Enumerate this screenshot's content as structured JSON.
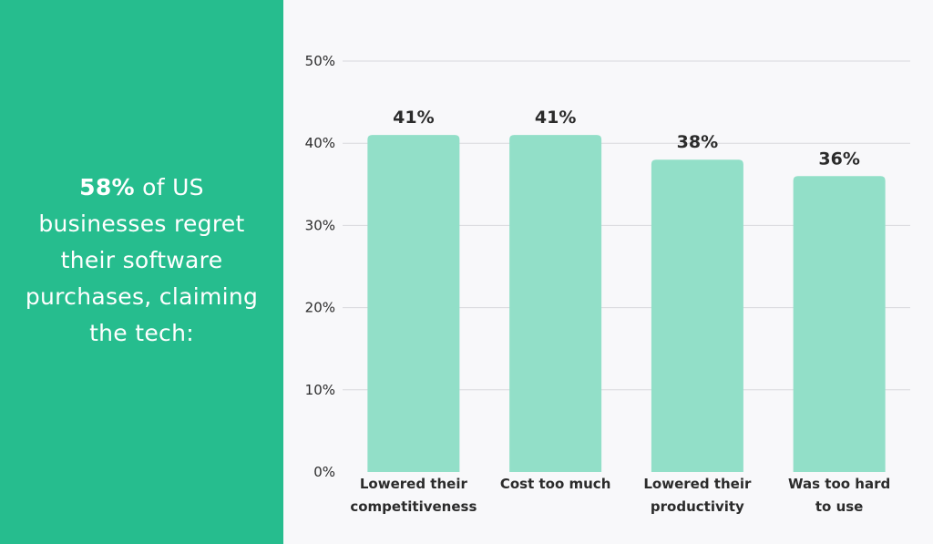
{
  "panel": {
    "headline_strong": "58%",
    "headline_lines": [
      " of US",
      "businesses regret",
      "their software",
      "purchases, claiming",
      "the tech:"
    ],
    "background_color": "#26bd8e",
    "text_color": "#ffffff"
  },
  "chart_data": {
    "type": "bar",
    "categories": [
      [
        "Lowered their",
        "competitiveness"
      ],
      [
        "Cost too much"
      ],
      [
        "Lowered their",
        "productivity"
      ],
      [
        "Was too hard",
        "to use"
      ]
    ],
    "values": [
      41,
      41,
      38,
      36
    ],
    "value_labels": [
      "41%",
      "41%",
      "38%",
      "36%"
    ],
    "y_ticks": [
      "0%",
      "10%",
      "20%",
      "30%",
      "40%",
      "50%"
    ],
    "y_tick_values": [
      0,
      10,
      20,
      30,
      40,
      50
    ],
    "ylim": [
      0,
      50
    ],
    "grid": true,
    "legend": "none",
    "bar_color": "#92dfc8",
    "grid_color": "#d9d9dd"
  }
}
